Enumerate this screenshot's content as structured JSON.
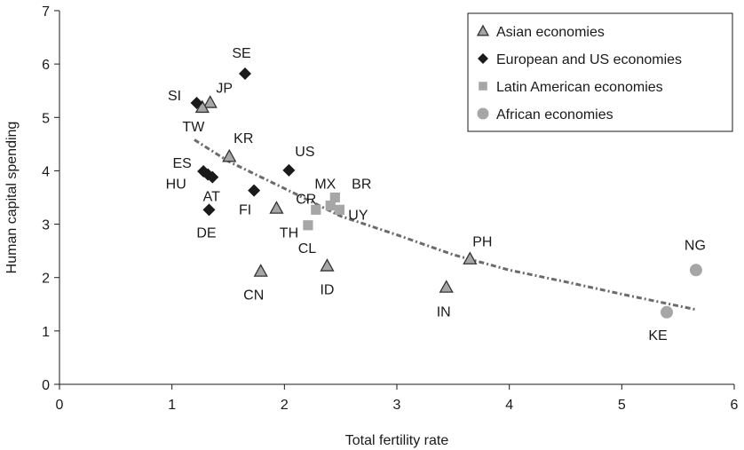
{
  "chart_data": {
    "type": "scatter",
    "xlabel": "Total fertility rate",
    "ylabel": "Human capital spending",
    "xlim": [
      0,
      6
    ],
    "ylim": [
      0,
      7
    ],
    "x_ticks": [
      "0",
      "1",
      "2",
      "3",
      "4",
      "5",
      "6"
    ],
    "y_ticks": [
      "0",
      "1",
      "2",
      "3",
      "4",
      "5",
      "6",
      "7"
    ],
    "grid": false,
    "legend_position": "top-right",
    "series": [
      {
        "name": "Asian economies",
        "marker": "triangle",
        "color": "#a6a6a6",
        "points": [
          {
            "label": "JP",
            "x": 1.34,
            "y": 5.28
          },
          {
            "label": "TW",
            "x": 1.27,
            "y": 5.19
          },
          {
            "label": "KR",
            "x": 1.51,
            "y": 4.27
          },
          {
            "label": "TH",
            "x": 1.93,
            "y": 3.3
          },
          {
            "label": "CN",
            "x": 1.79,
            "y": 2.12
          },
          {
            "label": "ID",
            "x": 2.38,
            "y": 2.22
          },
          {
            "label": "PH",
            "x": 3.65,
            "y": 2.35
          },
          {
            "label": "IN",
            "x": 3.44,
            "y": 1.82
          }
        ]
      },
      {
        "name": "European and US economies",
        "marker": "diamond",
        "color": "#1a1a1a",
        "points": [
          {
            "label": "SE",
            "x": 1.65,
            "y": 5.82
          },
          {
            "label": "SI",
            "x": 1.22,
            "y": 5.27
          },
          {
            "label": "ES",
            "x": 1.28,
            "y": 3.99
          },
          {
            "label": "HU",
            "x": 1.32,
            "y": 3.93
          },
          {
            "label": "AT",
            "x": 1.36,
            "y": 3.88
          },
          {
            "label": "US",
            "x": 2.04,
            "y": 4.01
          },
          {
            "label": "FI",
            "x": 1.73,
            "y": 3.63
          },
          {
            "label": "DE",
            "x": 1.33,
            "y": 3.27
          }
        ]
      },
      {
        "name": "Latin American economies",
        "marker": "square",
        "color": "#a6a6a6",
        "points": [
          {
            "label": "MX",
            "x": 2.45,
            "y": 3.5
          },
          {
            "label": "CR",
            "x": 2.28,
            "y": 3.27
          },
          {
            "label": "BR",
            "x": 2.41,
            "y": 3.35
          },
          {
            "label": "UY",
            "x": 2.49,
            "y": 3.27
          },
          {
            "label": "CL",
            "x": 2.21,
            "y": 2.98
          }
        ]
      },
      {
        "name": "African economies",
        "marker": "circle",
        "color": "#a6a6a6",
        "points": [
          {
            "label": "NG",
            "x": 5.66,
            "y": 2.14
          },
          {
            "label": "KE",
            "x": 5.4,
            "y": 1.35
          }
        ]
      }
    ],
    "trendline": {
      "style": "dashed",
      "color": "#6b6b6b",
      "points": [
        {
          "x": 1.2,
          "y": 4.58
        },
        {
          "x": 1.5,
          "y": 4.18
        },
        {
          "x": 2.0,
          "y": 3.67
        },
        {
          "x": 2.5,
          "y": 3.15
        },
        {
          "x": 3.0,
          "y": 2.8
        },
        {
          "x": 3.5,
          "y": 2.43
        },
        {
          "x": 4.0,
          "y": 2.14
        },
        {
          "x": 4.5,
          "y": 1.92
        },
        {
          "x": 5.0,
          "y": 1.69
        },
        {
          "x": 5.66,
          "y": 1.4
        }
      ]
    }
  }
}
